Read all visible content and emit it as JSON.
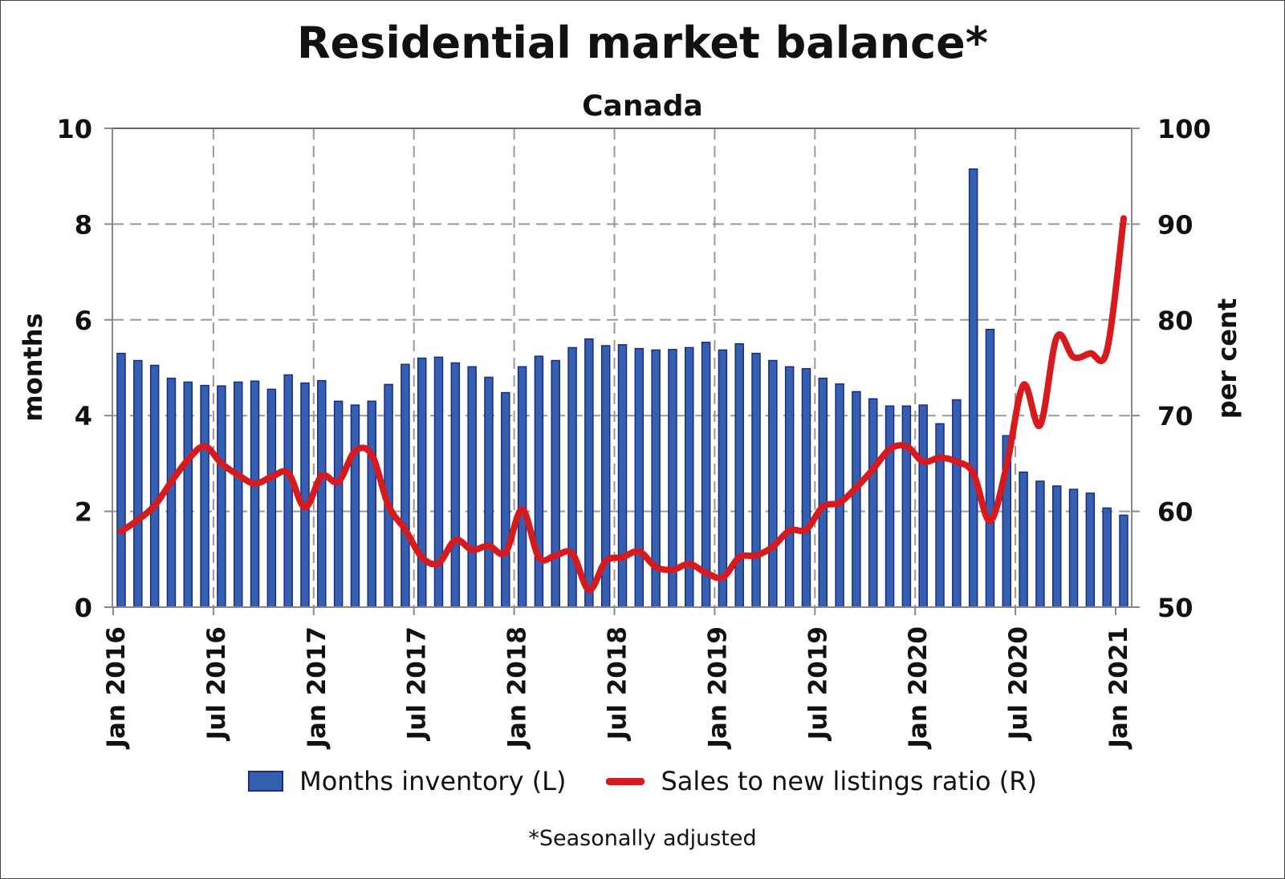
{
  "chart_data": {
    "type": "bar+line",
    "title": "Residential market balance*",
    "subtitle": "Canada",
    "footnote": "*Seasonally adjusted",
    "ylabel_left": "months",
    "ylabel_right": "per cent",
    "ylim_left": [
      0,
      10
    ],
    "ylim_right": [
      50,
      100
    ],
    "yticks_left": [
      "0",
      "2",
      "4",
      "6",
      "8",
      "10"
    ],
    "yticks_right": [
      "50",
      "60",
      "70",
      "80",
      "90",
      "100"
    ],
    "xtick_labels": [
      "Jan 2016",
      "Jul 2016",
      "Jan 2017",
      "Jul 2017",
      "Jan 2018",
      "Jul 2018",
      "Jan 2019",
      "Jul 2019",
      "Jan 2020",
      "Jul 2020",
      "Jan 2021"
    ],
    "x_start": "2016-01",
    "grid": true,
    "legend_position": "bottom",
    "colors": {
      "bar": "#3560b0",
      "bar_edge": "#1a2a8a",
      "line": "#d71a1e",
      "grid": "#999999"
    },
    "series": [
      {
        "name": "Months inventory (L)",
        "type": "bar",
        "axis": "left",
        "values": [
          5.3,
          5.15,
          5.05,
          4.78,
          4.7,
          4.63,
          4.62,
          4.7,
          4.72,
          4.55,
          4.85,
          4.68,
          4.73,
          4.3,
          4.22,
          4.3,
          4.65,
          5.07,
          5.2,
          5.22,
          5.1,
          5.02,
          4.8,
          4.48,
          5.02,
          5.24,
          5.15,
          5.42,
          5.6,
          5.46,
          5.48,
          5.4,
          5.37,
          5.38,
          5.42,
          5.53,
          5.37,
          5.5,
          5.3,
          5.15,
          5.02,
          4.98,
          4.78,
          4.66,
          4.5,
          4.35,
          4.2,
          4.2,
          4.22,
          3.83,
          4.33,
          9.15,
          5.8,
          3.58,
          2.82,
          2.63,
          2.53,
          2.46,
          2.38,
          2.07,
          1.92
        ]
      },
      {
        "name": "Sales to new listings ratio (R)",
        "type": "line",
        "axis": "right",
        "values": [
          57.9,
          59.1,
          60.6,
          63.1,
          65.4,
          66.8,
          65,
          63.8,
          62.9,
          63.6,
          64,
          60.4,
          63.7,
          63.1,
          66.3,
          65.9,
          60.6,
          58.1,
          55.2,
          54.6,
          57,
          56,
          56.4,
          55.7,
          60.2,
          55.2,
          55.4,
          55.6,
          51.8,
          54.8,
          55.2,
          55.8,
          54.2,
          53.9,
          54.5,
          53.6,
          53.1,
          55.2,
          55.4,
          56.3,
          58,
          58.1,
          60.5,
          60.9,
          62.5,
          64.4,
          66.5,
          66.8,
          65.2,
          65.6,
          65.2,
          64,
          59,
          64.8,
          73.2,
          69,
          78.2,
          76.1,
          76.5,
          76.8,
          90.6
        ]
      }
    ]
  }
}
